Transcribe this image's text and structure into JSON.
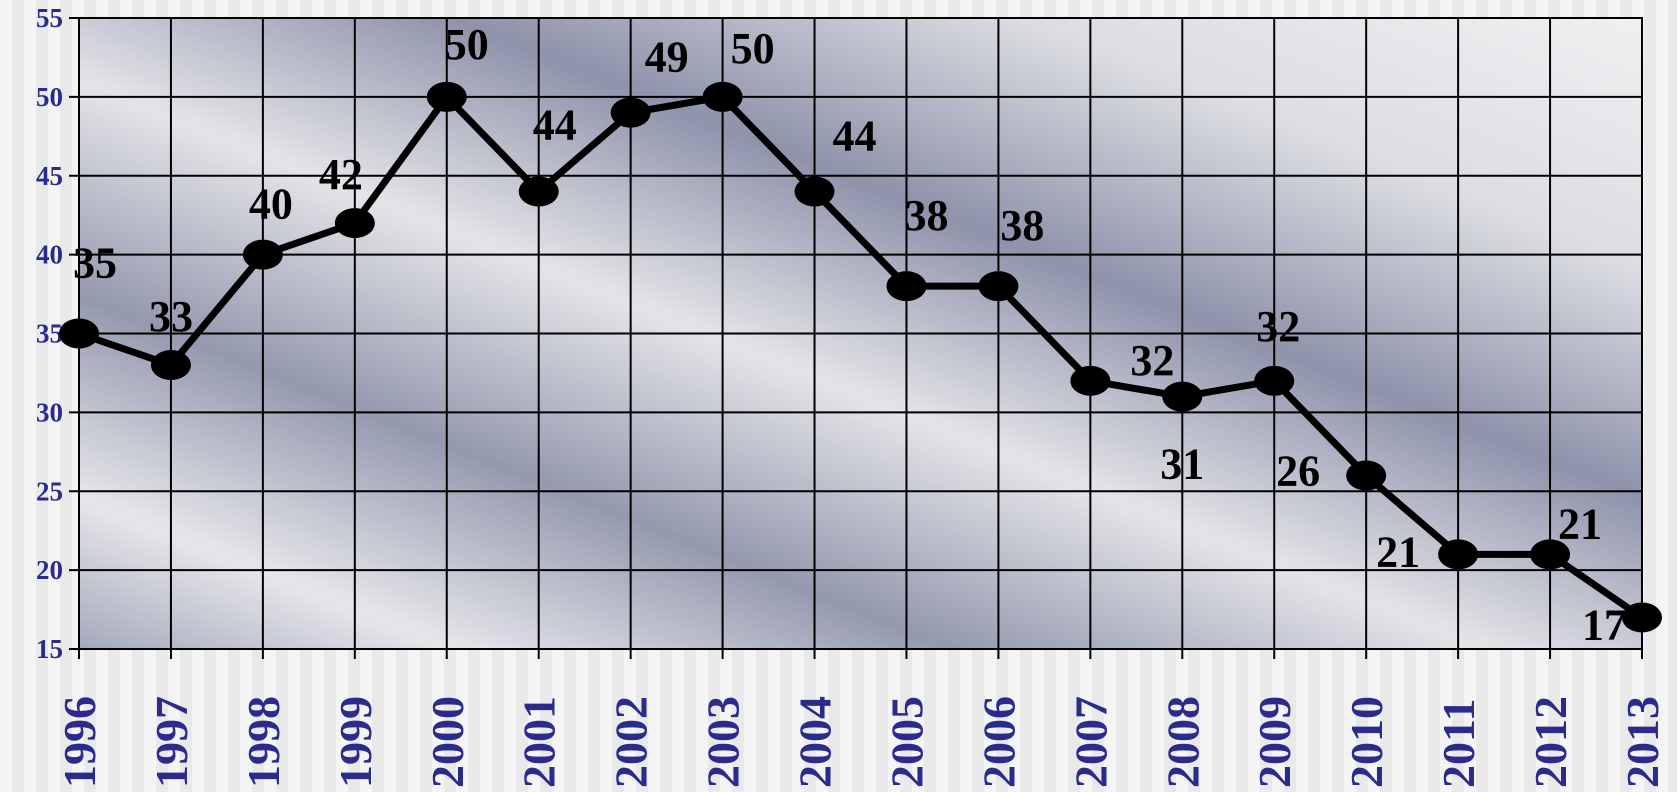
{
  "chart_data": {
    "type": "line",
    "categories": [
      "1996",
      "1997",
      "1998",
      "1999",
      "2000",
      "2001",
      "2002",
      "2003",
      "2004",
      "2005",
      "2006",
      "2007",
      "2008",
      "2009",
      "2010",
      "2011",
      "2012",
      "2013"
    ],
    "values": [
      35,
      33,
      40,
      42,
      50,
      44,
      49,
      50,
      44,
      38,
      38,
      32,
      31,
      32,
      26,
      21,
      21,
      17
    ],
    "ylim": [
      15,
      55
    ],
    "yticks": [
      "15",
      "20",
      "25",
      "30",
      "35",
      "40",
      "45",
      "50",
      "55"
    ],
    "grid": true,
    "colors": {
      "line": "#000000",
      "marker": "#000000",
      "tick_text": "#2b2b8c",
      "grid": "#000000",
      "plot_light": "#f2f2f4",
      "plot_dark": "#8a90a8"
    }
  }
}
